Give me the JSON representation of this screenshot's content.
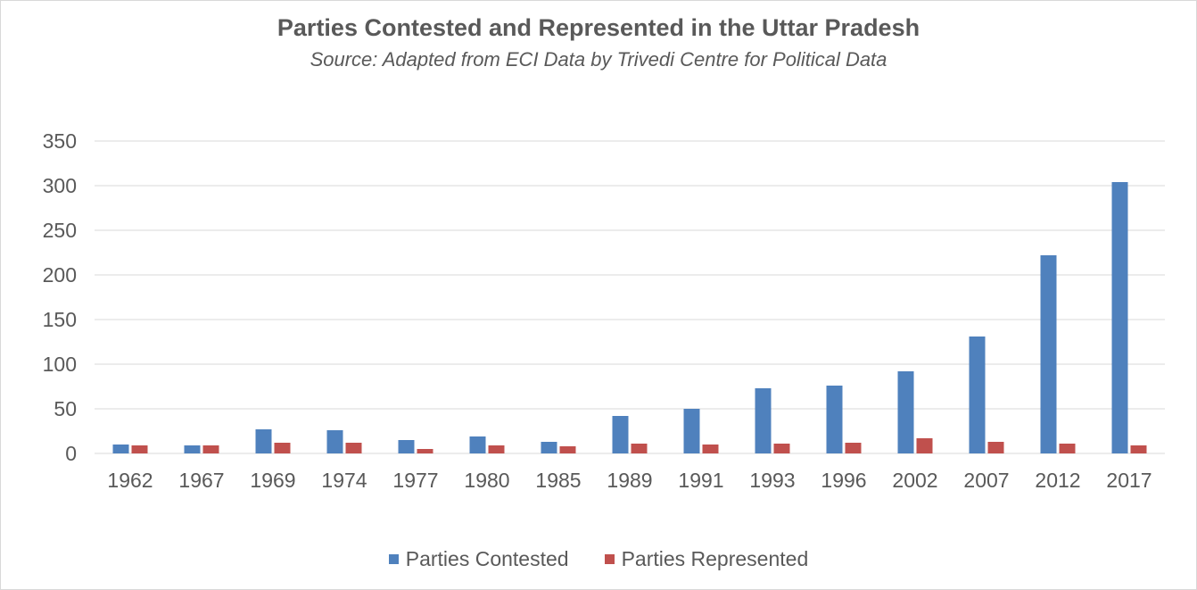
{
  "chart_data": {
    "type": "bar",
    "title": "Parties Contested and Represented in the Uttar Pradesh",
    "subtitle": "Source: Adapted from ECI Data by Trivedi Centre for Political Data",
    "categories": [
      "1962",
      "1967",
      "1969",
      "1974",
      "1977",
      "1980",
      "1985",
      "1989",
      "1991",
      "1993",
      "1996",
      "2002",
      "2007",
      "2012",
      "2017"
    ],
    "series": [
      {
        "name": "Parties Contested",
        "color": "#4F81BD",
        "values": [
          10,
          9,
          27,
          26,
          15,
          19,
          13,
          42,
          50,
          73,
          76,
          92,
          131,
          222,
          304
        ]
      },
      {
        "name": "Parties Represented",
        "color": "#C0504D",
        "values": [
          9,
          9,
          12,
          12,
          5,
          9,
          8,
          11,
          10,
          11,
          12,
          17,
          13,
          11,
          9
        ]
      }
    ],
    "ylim": [
      0,
      350
    ],
    "yticks": [
      0,
      50,
      100,
      150,
      200,
      250,
      300,
      350
    ],
    "grid": true,
    "legend": "bottom"
  }
}
